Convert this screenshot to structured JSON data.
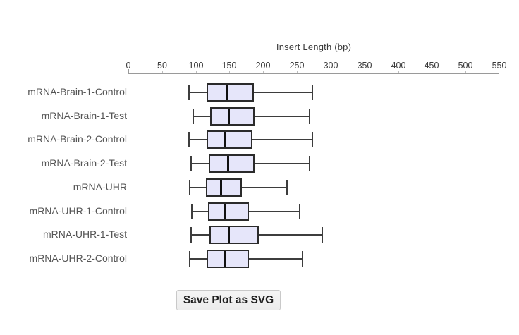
{
  "chart_data": {
    "type": "boxplot",
    "orientation": "horizontal",
    "title": "Insert Length (bp)",
    "xlabel": "Insert Length (bp)",
    "units": "bp",
    "xlim": [
      0,
      550
    ],
    "xticks": [
      0,
      50,
      100,
      150,
      200,
      250,
      300,
      350,
      400,
      450,
      500,
      550
    ],
    "grid": false,
    "legend_position": "none",
    "categories": [
      "mRNA-Brain-1-Control",
      "mRNA-Brain-1-Test",
      "mRNA-Brain-2-Control",
      "mRNA-Brain-2-Test",
      "mRNA-UHR",
      "mRNA-UHR-1-Control",
      "mRNA-UHR-1-Test",
      "mRNA-UHR-2-Control"
    ],
    "boxes": [
      {
        "whisker_low": 89,
        "q1": 116,
        "median": 146,
        "q3": 186,
        "whisker_high": 273
      },
      {
        "whisker_low": 95,
        "q1": 121,
        "median": 148,
        "q3": 187,
        "whisker_high": 269
      },
      {
        "whisker_low": 89,
        "q1": 116,
        "median": 143,
        "q3": 184,
        "whisker_high": 273
      },
      {
        "whisker_low": 92,
        "q1": 119,
        "median": 147,
        "q3": 187,
        "whisker_high": 269
      },
      {
        "whisker_low": 90,
        "q1": 115,
        "median": 137,
        "q3": 168,
        "whisker_high": 235
      },
      {
        "whisker_low": 93,
        "q1": 118,
        "median": 143,
        "q3": 179,
        "whisker_high": 254
      },
      {
        "whisker_low": 92,
        "q1": 120,
        "median": 148,
        "q3": 193,
        "whisker_high": 288
      },
      {
        "whisker_low": 90,
        "q1": 116,
        "median": 142,
        "q3": 179,
        "whisker_high": 258
      }
    ]
  },
  "colors": {
    "background": "#ffffff",
    "box_fill": "#e6e6fa",
    "box_border": "#2b2b2b",
    "median": "#111111",
    "whisker": "#3d3d3d",
    "axis_line": "#9a9a9a",
    "axis_minor_tick": "#bdbdbd",
    "tick_label": "#3a3a3a",
    "category_label": "#555555",
    "title_color": "#3a3a3a",
    "button_bg": "#f0f0f0",
    "button_border": "#c9c9c9",
    "button_text": "#1f1f1f"
  },
  "button": {
    "label": "Save Plot as SVG"
  }
}
